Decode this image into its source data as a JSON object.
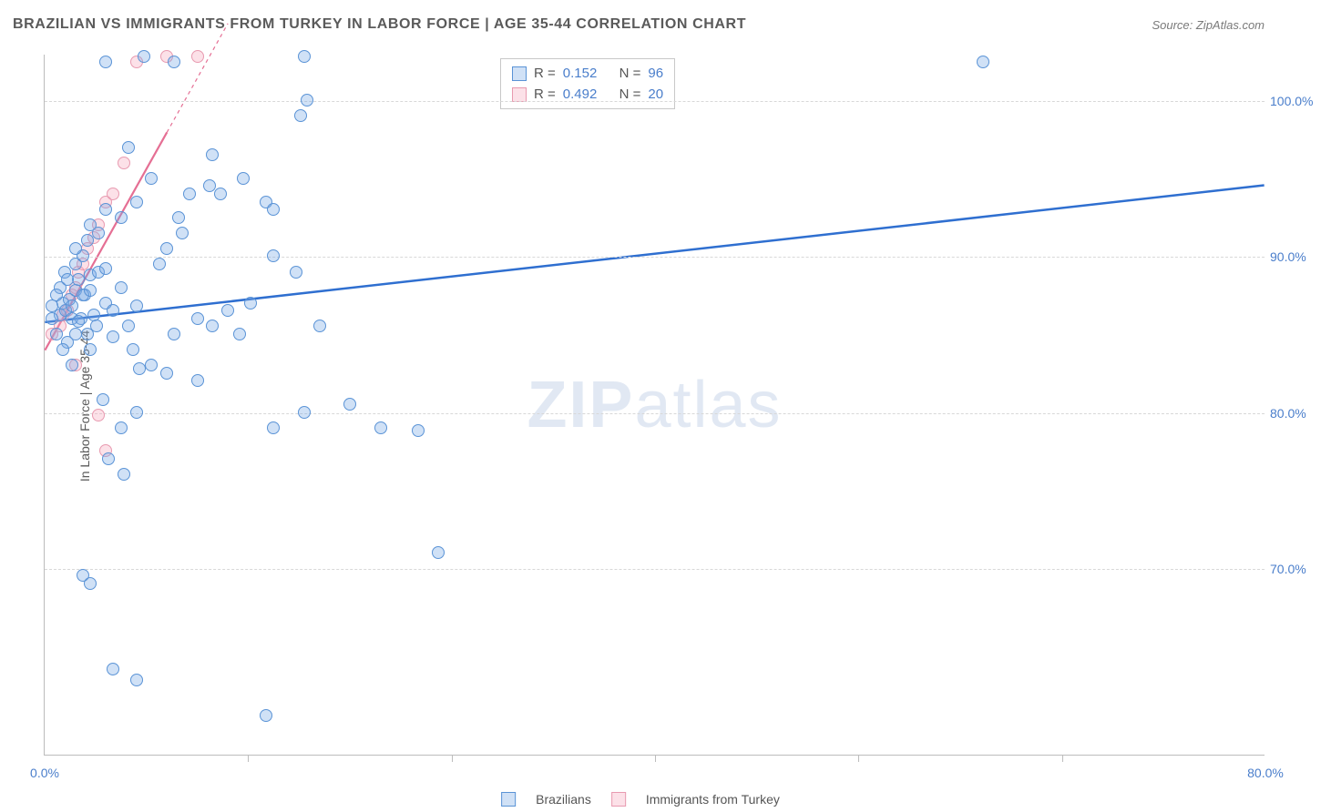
{
  "title": "BRAZILIAN VS IMMIGRANTS FROM TURKEY IN LABOR FORCE | AGE 35-44 CORRELATION CHART",
  "source": "Source: ZipAtlas.com",
  "ylabel": "In Labor Force | Age 35-44",
  "watermark_zip": "ZIP",
  "watermark_atlas": "atlas",
  "chart": {
    "type": "scatter",
    "xlim": [
      0,
      80
    ],
    "ylim": [
      58,
      103
    ],
    "x_ticks": [
      0,
      80
    ],
    "x_tick_labels": [
      "0.0%",
      "80.0%"
    ],
    "x_tick_minor": [
      13.3,
      26.7,
      40,
      53.3,
      66.7
    ],
    "y_ticks": [
      70,
      80,
      90,
      100
    ],
    "y_tick_labels": [
      "70.0%",
      "80.0%",
      "90.0%",
      "100.0%"
    ],
    "background_color": "#ffffff",
    "grid_color": "#d8d8d8",
    "axis_color": "#bcbcbc",
    "marker_radius": 7,
    "series": {
      "blue": {
        "label": "Brazilians",
        "fill": "rgba(120,170,230,0.35)",
        "stroke": "#5a93d6",
        "R": "0.152",
        "N": "96",
        "trend": {
          "x1": 0,
          "y1": 85.8,
          "x2": 80,
          "y2": 94.6,
          "color": "#2f6fd0",
          "width": 2.5,
          "dash": ""
        },
        "points": [
          [
            1.0,
            86.2
          ],
          [
            1.2,
            87.0
          ],
          [
            1.4,
            86.5
          ],
          [
            1.6,
            87.2
          ],
          [
            1.8,
            86.0
          ],
          [
            2.0,
            87.8
          ],
          [
            2.2,
            88.5
          ],
          [
            2.4,
            86.0
          ],
          [
            2.6,
            87.5
          ],
          [
            2.8,
            85.0
          ],
          [
            3.0,
            88.8
          ],
          [
            3.2,
            86.2
          ],
          [
            3.4,
            85.5
          ],
          [
            1.5,
            84.5
          ],
          [
            1.8,
            83.0
          ],
          [
            2.0,
            89.5
          ],
          [
            2.5,
            90.0
          ],
          [
            3.5,
            89.0
          ],
          [
            4.0,
            87.0
          ],
          [
            4.5,
            86.5
          ],
          [
            5.0,
            88.0
          ],
          [
            5.5,
            85.5
          ],
          [
            6.0,
            86.8
          ],
          [
            2.8,
            91.0
          ],
          [
            3.0,
            92.0
          ],
          [
            3.5,
            91.5
          ],
          [
            4.0,
            93.0
          ],
          [
            5.0,
            92.5
          ],
          [
            3.0,
            84.0
          ],
          [
            4.5,
            84.8
          ],
          [
            5.8,
            84.0
          ],
          [
            6.2,
            82.8
          ],
          [
            7.0,
            83.0
          ],
          [
            8.0,
            82.5
          ],
          [
            8.5,
            85.0
          ],
          [
            10.0,
            86.0
          ],
          [
            11.0,
            85.5
          ],
          [
            12.0,
            86.5
          ],
          [
            12.8,
            85.0
          ],
          [
            13.5,
            87.0
          ],
          [
            3.8,
            80.8
          ],
          [
            5.0,
            79.0
          ],
          [
            6.0,
            80.0
          ],
          [
            4.2,
            77.0
          ],
          [
            5.2,
            76.0
          ],
          [
            2.5,
            69.5
          ],
          [
            3.0,
            69.0
          ],
          [
            4.5,
            63.5
          ],
          [
            6.0,
            62.8
          ],
          [
            8.8,
            92.5
          ],
          [
            9.5,
            94.0
          ],
          [
            10.8,
            94.5
          ],
          [
            11.5,
            94.0
          ],
          [
            11.0,
            96.5
          ],
          [
            13.0,
            95.0
          ],
          [
            14.5,
            93.5
          ],
          [
            15.0,
            93.0
          ],
          [
            15.0,
            90.0
          ],
          [
            16.5,
            89.0
          ],
          [
            5.5,
            97.0
          ],
          [
            4.0,
            102.5
          ],
          [
            6.5,
            102.8
          ],
          [
            8.5,
            102.5
          ],
          [
            17.0,
            102.8
          ],
          [
            17.2,
            100.0
          ],
          [
            16.8,
            99.0
          ],
          [
            61.5,
            102.5
          ],
          [
            15.0,
            79.0
          ],
          [
            17.0,
            80.0
          ],
          [
            18.0,
            85.5
          ],
          [
            20.0,
            80.5
          ],
          [
            22.0,
            79.0
          ],
          [
            24.5,
            78.8
          ],
          [
            14.5,
            60.5
          ],
          [
            25.8,
            71.0
          ],
          [
            7.5,
            89.5
          ],
          [
            8.0,
            90.5
          ],
          [
            9.0,
            91.5
          ],
          [
            2.0,
            85.0
          ],
          [
            2.2,
            85.8
          ],
          [
            1.0,
            88.0
          ],
          [
            1.3,
            89.0
          ],
          [
            0.8,
            87.5
          ],
          [
            0.5,
            86.8
          ],
          [
            0.8,
            85.0
          ],
          [
            1.2,
            84.0
          ],
          [
            1.5,
            88.5
          ],
          [
            2.0,
            90.5
          ],
          [
            2.5,
            87.5
          ],
          [
            3.0,
            87.8
          ],
          [
            0.5,
            86.0
          ],
          [
            1.8,
            86.8
          ],
          [
            4.0,
            89.2
          ],
          [
            6.0,
            93.5
          ],
          [
            7.0,
            95.0
          ],
          [
            10.0,
            82.0
          ]
        ]
      },
      "pink": {
        "label": "Immigrants from Turkey",
        "fill": "rgba(245,170,190,0.35)",
        "stroke": "#e89ab0",
        "R": "0.492",
        "N": "20",
        "trend": {
          "x1": 0,
          "y1": 84.0,
          "x2": 12,
          "y2": 105.0,
          "solid_to_x": 8,
          "color": "#e56f94",
          "width": 2.2
        },
        "points": [
          [
            0.5,
            85.0
          ],
          [
            1.0,
            85.5
          ],
          [
            1.2,
            86.2
          ],
          [
            1.5,
            86.5
          ],
          [
            1.8,
            87.5
          ],
          [
            2.0,
            88.0
          ],
          [
            2.2,
            89.0
          ],
          [
            2.5,
            89.5
          ],
          [
            2.8,
            90.5
          ],
          [
            3.2,
            91.2
          ],
          [
            3.5,
            92.0
          ],
          [
            4.0,
            93.5
          ],
          [
            4.5,
            94.0
          ],
          [
            5.2,
            96.0
          ],
          [
            6.0,
            102.5
          ],
          [
            8.0,
            102.8
          ],
          [
            10.0,
            102.8
          ],
          [
            3.5,
            79.8
          ],
          [
            4.0,
            77.5
          ],
          [
            2.0,
            83.0
          ]
        ]
      }
    },
    "stats_legend": {
      "r_label": "R = ",
      "n_label": "N = "
    },
    "bottom_legend": [
      "Brazilians",
      "Immigrants from Turkey"
    ]
  }
}
